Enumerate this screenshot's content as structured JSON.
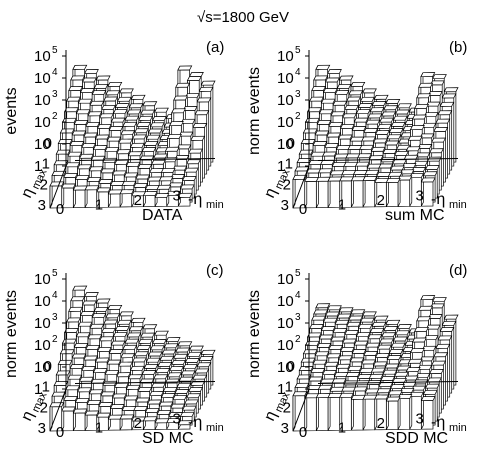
{
  "figure": {
    "title": "√s=1800 GeV",
    "x_axis_label": "-η",
    "x_axis_label_subscript": "min",
    "y_axis_label": "η",
    "y_axis_label_subscript": "max",
    "x_ticks": [
      "0",
      "1",
      "2",
      "3"
    ],
    "y_ticks": [
      "3",
      "2",
      "1",
      "0"
    ],
    "z_ticks": [
      {
        "base": "10",
        "exp": "5"
      },
      {
        "base": "10",
        "exp": "4"
      },
      {
        "base": "10",
        "exp": "3"
      },
      {
        "base": "10",
        "exp": "2"
      },
      {
        "base": "10",
        "exp": ""
      },
      {
        "base": "1",
        "exp": ""
      }
    ]
  },
  "chart_data": [
    {
      "type": "bar3d",
      "panel": "(a)",
      "caption": "DATA",
      "zlabel": "events",
      "xlabel": "-ηmin",
      "ylabel": "ηmax",
      "xlim": [
        0,
        3.6
      ],
      "ylim": [
        0,
        3.6
      ],
      "zscale": "log",
      "zlim": [
        1,
        100000
      ],
      "grid_note": "12x12 lego histogram; log10(events) per cell",
      "ridge_log10": [
        4.3,
        4.05,
        3.85,
        3.6,
        3.35,
        3.05,
        2.75,
        2.45,
        2.1,
        1.75,
        1.4,
        1.05
      ],
      "spike_cells": [
        {
          "x_bin": 9,
          "y_bin": 0,
          "log10": 4.2
        },
        {
          "x_bin": 10,
          "y_bin": 1,
          "log10": 3.9
        }
      ],
      "log10_events": [
        [
          4.3,
          4.1,
          3.8,
          3.5,
          3.2,
          2.9,
          2.6,
          2.3,
          2.0,
          4.2,
          3.9,
          3.5
        ],
        [
          4.0,
          3.9,
          3.6,
          3.3,
          3.0,
          2.7,
          2.4,
          2.1,
          1.8,
          3.6,
          3.9,
          3.4
        ],
        [
          3.7,
          3.6,
          3.5,
          3.2,
          2.9,
          2.6,
          2.3,
          2.0,
          1.7,
          3.2,
          3.3,
          3.1
        ],
        [
          3.4,
          3.3,
          3.2,
          3.0,
          2.8,
          2.5,
          2.2,
          1.9,
          1.6,
          2.8,
          2.9,
          2.7
        ],
        [
          3.1,
          3.0,
          2.9,
          2.8,
          2.6,
          2.4,
          2.1,
          1.8,
          1.5,
          2.4,
          2.5,
          2.3
        ],
        [
          2.8,
          2.7,
          2.6,
          2.5,
          2.4,
          2.2,
          2.0,
          1.7,
          1.4,
          2.0,
          2.1,
          1.9
        ],
        [
          2.5,
          2.4,
          2.3,
          2.2,
          2.1,
          2.0,
          1.8,
          1.6,
          1.3,
          1.6,
          1.7,
          1.5
        ],
        [
          2.2,
          2.1,
          2.0,
          1.9,
          1.8,
          1.7,
          1.6,
          1.4,
          1.2,
          1.3,
          1.4,
          1.2
        ],
        [
          1.9,
          1.8,
          1.7,
          1.6,
          1.5,
          1.4,
          1.3,
          1.2,
          1.0,
          1.0,
          1.1,
          1.0
        ],
        [
          1.6,
          1.5,
          1.4,
          1.3,
          1.2,
          1.1,
          1.0,
          0.9,
          0.8,
          0.8,
          0.9,
          0.8
        ],
        [
          1.3,
          1.2,
          1.1,
          1.0,
          0.9,
          0.8,
          0.8,
          0.7,
          0.6,
          0.6,
          0.7,
          0.6
        ],
        [
          1.0,
          0.9,
          0.8,
          0.8,
          0.7,
          0.6,
          0.6,
          0.5,
          0.5,
          0.4,
          0.5,
          0.4
        ]
      ]
    },
    {
      "type": "bar3d",
      "panel": "(b)",
      "caption": "sum MC",
      "zlabel": "norm events",
      "xlabel": "-ηmin",
      "ylabel": "ηmax",
      "xlim": [
        0,
        3.6
      ],
      "ylim": [
        0,
        3.6
      ],
      "zscale": "log",
      "zlim": [
        1,
        100000
      ],
      "log10_events": [
        [
          4.3,
          4.1,
          3.8,
          3.5,
          3.2,
          2.9,
          2.7,
          2.5,
          2.3,
          3.9,
          3.8,
          3.2
        ],
        [
          4.0,
          3.9,
          3.6,
          3.3,
          3.0,
          2.8,
          2.6,
          2.4,
          2.2,
          3.6,
          3.7,
          3.1
        ],
        [
          3.7,
          3.6,
          3.5,
          3.2,
          2.9,
          2.7,
          2.5,
          2.3,
          2.1,
          3.3,
          3.4,
          2.9
        ],
        [
          3.4,
          3.3,
          3.2,
          3.0,
          2.8,
          2.6,
          2.4,
          2.2,
          2.0,
          3.0,
          3.1,
          2.7
        ],
        [
          3.1,
          3.0,
          2.9,
          2.8,
          2.6,
          2.5,
          2.3,
          2.1,
          1.9,
          2.7,
          2.8,
          2.5
        ],
        [
          2.8,
          2.7,
          2.6,
          2.5,
          2.4,
          2.3,
          2.2,
          2.0,
          1.8,
          2.4,
          2.5,
          2.3
        ],
        [
          2.5,
          2.4,
          2.3,
          2.2,
          2.1,
          2.1,
          2.0,
          1.9,
          1.7,
          2.1,
          2.2,
          2.0
        ],
        [
          2.2,
          2.1,
          2.0,
          1.9,
          1.9,
          1.9,
          1.8,
          1.7,
          1.6,
          1.8,
          1.9,
          1.7
        ],
        [
          1.9,
          1.8,
          1.8,
          1.7,
          1.7,
          1.7,
          1.6,
          1.5,
          1.4,
          1.6,
          1.7,
          1.5
        ],
        [
          1.7,
          1.6,
          1.6,
          1.5,
          1.5,
          1.5,
          1.4,
          1.4,
          1.3,
          1.4,
          1.5,
          1.3
        ],
        [
          1.5,
          1.4,
          1.4,
          1.3,
          1.3,
          1.3,
          1.3,
          1.2,
          1.2,
          1.3,
          1.4,
          1.2
        ],
        [
          1.3,
          1.2,
          1.2,
          1.2,
          1.2,
          1.2,
          1.2,
          1.1,
          1.1,
          1.2,
          1.3,
          1.1
        ]
      ]
    },
    {
      "type": "bar3d",
      "panel": "(c)",
      "caption": "SD MC",
      "zlabel": "norm events",
      "xlabel": "-ηmin",
      "ylabel": "ηmax",
      "xlim": [
        0,
        3.6
      ],
      "ylim": [
        0,
        3.6
      ],
      "zscale": "log",
      "zlim": [
        1,
        100000
      ],
      "log10_events": [
        [
          4.4,
          4.1,
          3.8,
          3.5,
          3.2,
          2.9,
          2.6,
          2.3,
          2.0,
          1.8,
          1.6,
          1.4
        ],
        [
          4.1,
          3.9,
          3.6,
          3.3,
          3.0,
          2.7,
          2.4,
          2.1,
          1.9,
          1.7,
          1.5,
          1.3
        ],
        [
          3.8,
          3.6,
          3.5,
          3.2,
          2.9,
          2.6,
          2.3,
          2.0,
          1.8,
          1.6,
          1.4,
          1.2
        ],
        [
          3.5,
          3.3,
          3.2,
          3.0,
          2.8,
          2.5,
          2.2,
          1.9,
          1.7,
          1.5,
          1.3,
          1.1
        ],
        [
          3.2,
          3.0,
          2.9,
          2.8,
          2.6,
          2.4,
          2.1,
          1.8,
          1.6,
          1.4,
          1.2,
          1.0
        ],
        [
          2.9,
          2.7,
          2.6,
          2.5,
          2.4,
          2.2,
          2.0,
          1.7,
          1.5,
          1.3,
          1.1,
          0.9
        ],
        [
          2.6,
          2.4,
          2.3,
          2.2,
          2.1,
          2.0,
          1.8,
          1.6,
          1.4,
          1.2,
          1.0,
          0.8
        ],
        [
          2.3,
          2.1,
          2.0,
          1.9,
          1.8,
          1.7,
          1.6,
          1.4,
          1.2,
          1.0,
          0.9,
          0.7
        ],
        [
          2.0,
          1.8,
          1.7,
          1.6,
          1.5,
          1.4,
          1.3,
          1.2,
          1.0,
          0.9,
          0.8,
          0.6
        ],
        [
          1.7,
          1.5,
          1.4,
          1.3,
          1.2,
          1.1,
          1.0,
          0.9,
          0.8,
          0.7,
          0.6,
          0.5
        ],
        [
          1.4,
          1.2,
          1.1,
          1.0,
          0.9,
          0.8,
          0.7,
          0.7,
          0.6,
          0.5,
          0.4,
          0.4
        ],
        [
          1.1,
          0.9,
          0.8,
          0.7,
          0.6,
          0.5,
          0.5,
          0.4,
          0.4,
          0.3,
          0.3,
          0.2
        ]
      ]
    },
    {
      "type": "bar3d",
      "panel": "(d)",
      "caption": "SDD MC",
      "zlabel": "norm events",
      "xlabel": "-ηmin",
      "ylabel": "ηmax",
      "xlim": [
        0,
        3.6
      ],
      "ylim": [
        0,
        3.6
      ],
      "zscale": "log",
      "zlim": [
        1,
        100000
      ],
      "log10_events": [
        [
          3.6,
          3.5,
          3.4,
          3.3,
          3.2,
          3.0,
          2.8,
          2.6,
          2.4,
          3.9,
          3.8,
          3.0
        ],
        [
          3.5,
          3.4,
          3.3,
          3.2,
          3.1,
          2.9,
          2.7,
          2.5,
          2.3,
          3.6,
          3.7,
          2.9
        ],
        [
          3.4,
          3.3,
          3.2,
          3.1,
          3.0,
          2.8,
          2.6,
          2.4,
          2.2,
          3.3,
          3.4,
          2.8
        ],
        [
          3.2,
          3.1,
          3.0,
          2.9,
          2.8,
          2.7,
          2.5,
          2.3,
          2.1,
          3.0,
          3.1,
          2.6
        ],
        [
          3.0,
          2.9,
          2.8,
          2.7,
          2.6,
          2.5,
          2.4,
          2.2,
          2.0,
          2.7,
          2.8,
          2.4
        ],
        [
          2.8,
          2.7,
          2.6,
          2.5,
          2.4,
          2.3,
          2.2,
          2.1,
          1.9,
          2.4,
          2.5,
          2.2
        ],
        [
          2.6,
          2.5,
          2.4,
          2.3,
          2.2,
          2.1,
          2.0,
          1.9,
          1.8,
          2.1,
          2.2,
          2.0
        ],
        [
          2.4,
          2.3,
          2.2,
          2.1,
          2.0,
          1.9,
          1.9,
          1.8,
          1.7,
          1.9,
          2.0,
          1.8
        ],
        [
          2.2,
          2.1,
          2.0,
          1.9,
          1.9,
          1.8,
          1.8,
          1.7,
          1.6,
          1.7,
          1.8,
          1.6
        ],
        [
          2.0,
          1.9,
          1.8,
          1.8,
          1.7,
          1.7,
          1.7,
          1.6,
          1.5,
          1.6,
          1.7,
          1.5
        ],
        [
          1.8,
          1.7,
          1.7,
          1.6,
          1.6,
          1.6,
          1.5,
          1.5,
          1.4,
          1.5,
          1.6,
          1.4
        ],
        [
          1.6,
          1.5,
          1.5,
          1.5,
          1.5,
          1.4,
          1.4,
          1.4,
          1.3,
          1.4,
          1.5,
          1.3
        ]
      ]
    }
  ]
}
